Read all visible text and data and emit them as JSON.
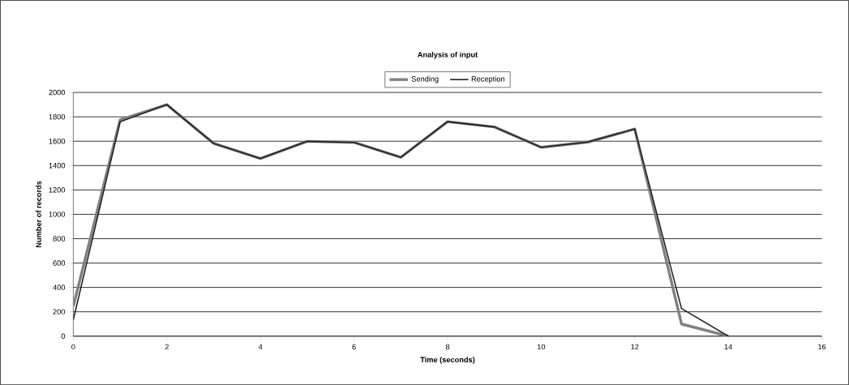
{
  "chart_data": {
    "type": "line",
    "title": "Analysis of input",
    "xlabel": "Time (seconds)",
    "ylabel": "Number of records",
    "x": [
      0,
      1,
      2,
      3,
      4,
      5,
      6,
      7,
      8,
      9,
      10,
      11,
      12,
      13,
      14
    ],
    "series": [
      {
        "name": "Sending",
        "color": "#808080",
        "values": [
          245,
          1775,
          1900,
          1582,
          1458,
          1599,
          1590,
          1468,
          1760,
          1717,
          1550,
          1593,
          1700,
          100,
          0
        ]
      },
      {
        "name": "Reception",
        "color": "#222222",
        "values": [
          135,
          1760,
          1900,
          1582,
          1458,
          1599,
          1590,
          1468,
          1760,
          1717,
          1550,
          1593,
          1700,
          227,
          0
        ]
      }
    ],
    "xlim": [
      0,
      16
    ],
    "xticks": [
      0,
      2,
      4,
      6,
      8,
      10,
      12,
      14,
      16
    ],
    "ylim": [
      0,
      2000
    ],
    "yticks": [
      0,
      200,
      400,
      600,
      800,
      1000,
      1200,
      1400,
      1600,
      1800,
      2000
    ],
    "grid": "y",
    "legend": "top",
    "marker": "none",
    "line_style": "solid"
  }
}
